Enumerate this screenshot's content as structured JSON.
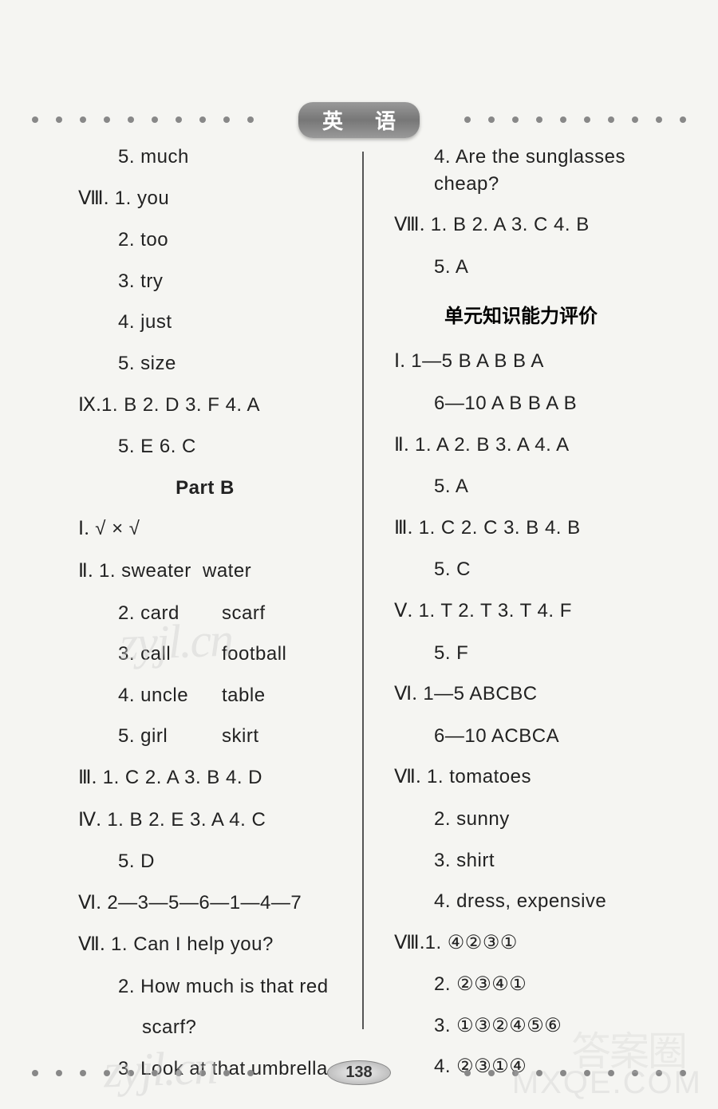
{
  "header": {
    "char1": "英",
    "char2": "语",
    "dot_color": "#888888",
    "badge_bg": "#808080",
    "text_color": "#ffffff"
  },
  "page_number": "138",
  "left": {
    "l1": "5. much",
    "s2_label": "Ⅷ.",
    "l2": "1. you",
    "l3": "2. too",
    "l4": "3. try",
    "l5": "4. just",
    "l6": "5. size",
    "s3_label": "Ⅸ.",
    "l7": "1. B  2. D  3. F  4. A",
    "l8": "5. E  6. C",
    "partb": "Part B",
    "s4_label": "Ⅰ.",
    "l9": "√   ×   √",
    "s5_label": "Ⅱ.",
    "l10a": "1. sweater",
    "l10b": "water",
    "l11a": "2. card",
    "l11b": "scarf",
    "l12a": "3. call",
    "l12b": "football",
    "l13a": "4. uncle",
    "l13b": "table",
    "l14a": "5. girl",
    "l14b": "skirt",
    "s6_label": "Ⅲ.",
    "l15": "1. C  2. A  3. B  4. D",
    "s7_label": "Ⅳ.",
    "l16": "1. B  2. E  3. A  4. C",
    "l17": "5. D",
    "s8_label": "Ⅵ.",
    "l18": "2—3—5—6—1—4—7",
    "s9_label": "Ⅶ.",
    "l19": "1. Can I help you?",
    "l20": "2.  How  much  is  that  red",
    "l21": "scarf?",
    "l22": "3. Look at that umbrella."
  },
  "right": {
    "l1": "4. Are the sunglasses cheap?",
    "s1_label": "Ⅷ.",
    "l2": "1. B  2. A  3. C  4. B",
    "l3": "5. A",
    "unit_title": "单元知识能力评价",
    "s2_label": "Ⅰ.",
    "l4": "1—5  B A B B A",
    "l5": "6—10  A B B A B",
    "s3_label": "Ⅱ.",
    "l6": "1. A  2. B  3. A  4. A",
    "l7": "5. A",
    "s4_label": "Ⅲ.",
    "l8": "1. C  2. C  3. B  4. B",
    "l9": "5. C",
    "s5_label": "Ⅴ.",
    "l10": "1. T  2. T  3. T  4. F",
    "l11": "5. F",
    "s6_label": "Ⅵ.",
    "l12": "1—5  ABCBC",
    "l13": "6—10  ACBCA",
    "s7_label": "Ⅶ.",
    "l14": "1. tomatoes",
    "l15": "2. sunny",
    "l16": "3. shirt",
    "l17": "4. dress, expensive",
    "s8_label": "Ⅷ.",
    "l18": "1. ④②③①",
    "l19": "2. ②③④①",
    "l20": "3. ①③②④⑤⑥",
    "l21": "4. ②③①④"
  },
  "watermarks": {
    "wm1": "zyjl.cn",
    "wm2": "zyjl.cn",
    "wm3": "MXQE.COM",
    "wm4": "答案圈"
  },
  "colors": {
    "background": "#f5f5f2",
    "text": "#222222",
    "divider": "#555555",
    "dot": "#888888"
  },
  "fonts": {
    "body_size": 24,
    "title_size": 26
  }
}
